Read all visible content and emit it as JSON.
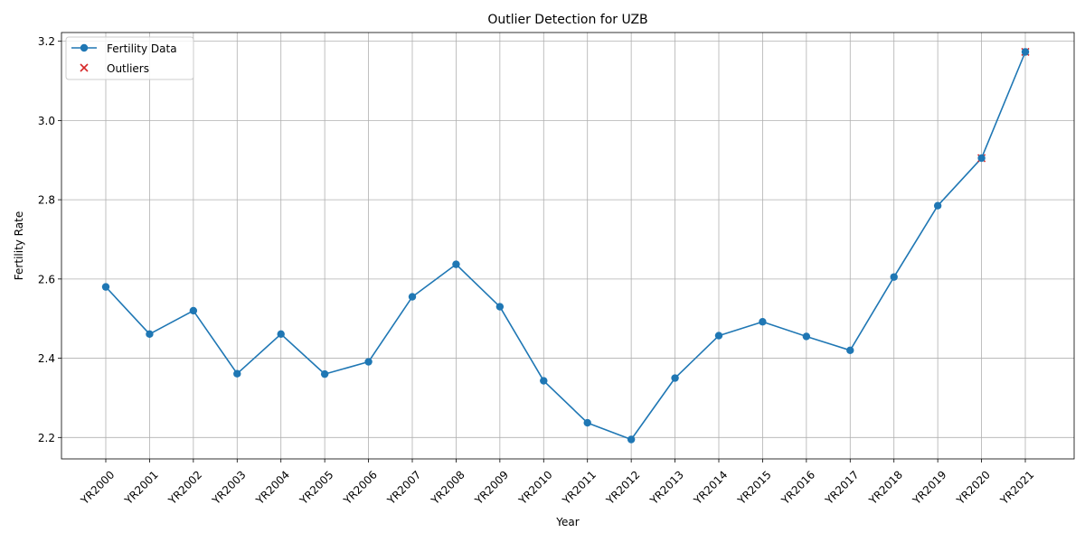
{
  "chart_data": {
    "type": "line",
    "title": "Outlier Detection for UZB",
    "xlabel": "Year",
    "ylabel": "Fertility Rate",
    "categories": [
      "YR2000",
      "YR2001",
      "YR2002",
      "YR2003",
      "YR2004",
      "YR2005",
      "YR2006",
      "YR2007",
      "YR2008",
      "YR2009",
      "YR2010",
      "YR2011",
      "YR2012",
      "YR2013",
      "YR2014",
      "YR2015",
      "YR2016",
      "YR2017",
      "YR2018",
      "YR2019",
      "YR2020",
      "YR2021"
    ],
    "series": [
      {
        "name": "Fertility Data",
        "color": "#1f77b4",
        "marker": "circle",
        "values": [
          2.58,
          2.461,
          2.52,
          2.361,
          2.461,
          2.36,
          2.391,
          2.555,
          2.637,
          2.53,
          2.343,
          2.237,
          2.195,
          2.35,
          2.457,
          2.492,
          2.455,
          2.42,
          2.605,
          2.785,
          2.905,
          3.173
        ]
      },
      {
        "name": "Outliers",
        "color": "#d62728",
        "marker": "x",
        "x": [
          "YR2020",
          "YR2021"
        ],
        "values": [
          2.905,
          3.173
        ]
      }
    ],
    "yticks": [
      2.2,
      2.4,
      2.6,
      2.8,
      3.0,
      3.2
    ],
    "ylim": [
      2.146,
      3.222
    ],
    "grid": true,
    "legend": "top-left"
  }
}
